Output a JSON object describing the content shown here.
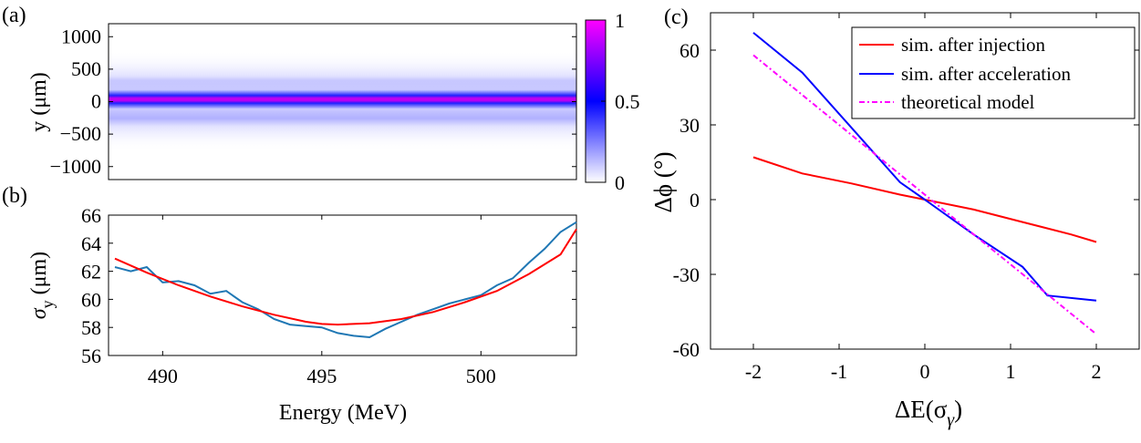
{
  "figure": {
    "panel_labels": [
      "(a)",
      "(b)",
      "(c)"
    ]
  },
  "colors": {
    "injection": "#ff0000",
    "acceleration": "#0000ff",
    "theory": "#ff00ff",
    "measured": "#1f77b4",
    "fit": "#ff0000"
  },
  "chart_data": [
    {
      "id": "a",
      "type": "heatmap",
      "title": "",
      "xlabel": "",
      "ylabel": "y (μm)",
      "xlim": [
        488.3,
        503.0
      ],
      "ylim": [
        -1200,
        1200
      ],
      "yticks": [
        1000,
        500,
        0,
        -500,
        -1000
      ],
      "ytick_labels": [
        "1000",
        "500",
        "0",
        "−500",
        "−1000"
      ],
      "colorbar": {
        "range": [
          0,
          1
        ],
        "ticks": [
          1,
          0.5,
          0
        ],
        "tick_labels": [
          "1",
          "0.5",
          "0"
        ],
        "colormap": [
          "#ffffff",
          "#0000ff",
          "#ff00ff"
        ]
      },
      "beam": {
        "center_um": 0,
        "core_halfwidth_um": 150,
        "halo_halfwidth_um": 500,
        "peak_value": 0.9
      }
    },
    {
      "id": "b",
      "type": "line",
      "xlabel": "Energy (MeV)",
      "ylabel_symbol": "σ",
      "ylabel_sub": "y",
      "ylabel_unit": "(μm)",
      "xlim": [
        488.3,
        503.0
      ],
      "ylim": [
        56,
        66
      ],
      "xticks": [
        490,
        495,
        500
      ],
      "xtick_labels": [
        "490",
        "495",
        "500"
      ],
      "yticks": [
        66,
        64,
        62,
        60,
        58,
        56
      ],
      "ytick_labels": [
        "66",
        "64",
        "62",
        "60",
        "58",
        "56"
      ],
      "series": [
        {
          "name": "measured",
          "x": [
            488.5,
            489.0,
            489.5,
            490.0,
            490.5,
            491.0,
            491.5,
            492.0,
            492.5,
            493.0,
            493.5,
            494.0,
            494.5,
            495.0,
            495.5,
            496.0,
            496.5,
            497.0,
            497.5,
            498.0,
            498.5,
            499.0,
            499.5,
            500.0,
            500.5,
            501.0,
            501.5,
            502.0,
            502.5,
            503.0
          ],
          "y": [
            62.3,
            62.0,
            62.3,
            61.2,
            61.3,
            61.0,
            60.4,
            60.6,
            59.8,
            59.3,
            58.6,
            58.2,
            58.1,
            58.0,
            57.6,
            57.4,
            57.3,
            57.9,
            58.4,
            58.9,
            59.3,
            59.7,
            60.0,
            60.3,
            61.0,
            61.5,
            62.6,
            63.6,
            64.8,
            65.5
          ]
        },
        {
          "name": "fit",
          "x": [
            488.5,
            489.5,
            490.5,
            491.5,
            492.5,
            493.5,
            494.5,
            495.0,
            495.5,
            496.5,
            497.5,
            498.5,
            499.5,
            500.5,
            501.5,
            502.5,
            503.0
          ],
          "y": [
            62.9,
            61.9,
            61.0,
            60.2,
            59.5,
            58.9,
            58.4,
            58.25,
            58.2,
            58.3,
            58.6,
            59.1,
            59.8,
            60.6,
            61.8,
            63.2,
            65.0
          ]
        }
      ]
    },
    {
      "id": "c",
      "type": "line",
      "xlabel": "ΔE(σ",
      "xlabel_sub": "γ",
      "xlabel_close": ")",
      "ylabel": "Δϕ (°)",
      "xlim": [
        -2.5,
        2.5
      ],
      "ylim": [
        -60,
        75
      ],
      "xticks": [
        -2,
        -1,
        0,
        1,
        2
      ],
      "xtick_labels": [
        "-2",
        "-1",
        "0",
        "1",
        "2"
      ],
      "yticks": [
        60,
        30,
        0,
        -30,
        -60
      ],
      "ytick_labels": [
        "60",
        "30",
        "0",
        "-30",
        "-60"
      ],
      "series": [
        {
          "name": "sim. after injection",
          "x": [
            -2,
            -1.43,
            -0.86,
            -0.29,
            0,
            0.57,
            1.14,
            1.71,
            2
          ],
          "y": [
            17,
            10.5,
            6.5,
            2,
            0,
            -4,
            -9,
            -14,
            -17
          ]
        },
        {
          "name": "sim. after acceleration",
          "x": [
            -2,
            -1.43,
            -0.86,
            -0.29,
            0,
            0.57,
            1.14,
            1.43,
            2
          ],
          "y": [
            67,
            51,
            29,
            7,
            0,
            -14,
            -27,
            -38.5,
            -40.5
          ]
        },
        {
          "name": "theoretical model",
          "x": [
            -2,
            2
          ],
          "y": [
            58,
            -54
          ],
          "dashed": true
        }
      ],
      "legend": {
        "position": "top-right",
        "entries": [
          "sim. after injection",
          "sim. after acceleration",
          "theoretical model"
        ]
      }
    }
  ]
}
